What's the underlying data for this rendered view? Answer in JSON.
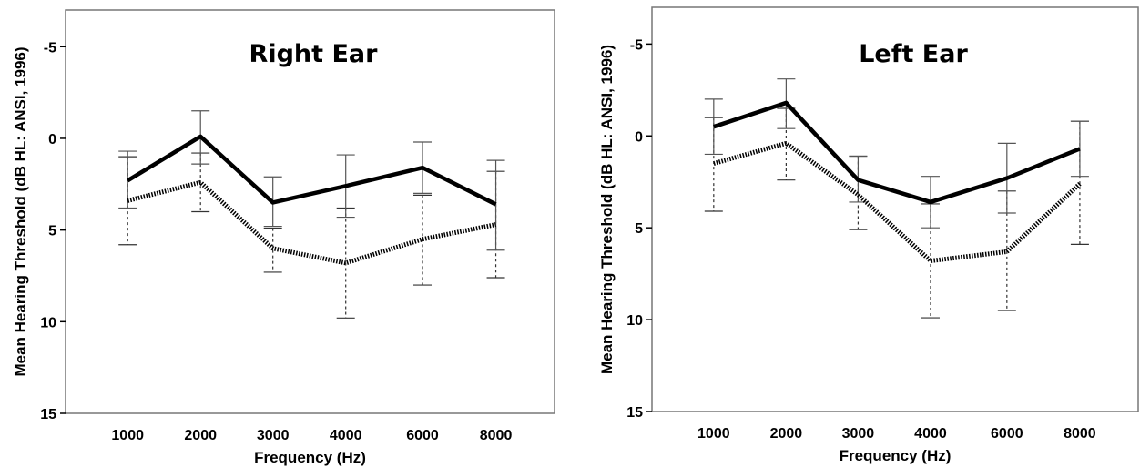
{
  "chart_data": [
    {
      "type": "line",
      "title": "Right Ear",
      "xlabel": "Frequency (Hz)",
      "ylabel": "Mean Hearing Threshold (dB HL: ANSI, 1996)",
      "categories": [
        "1000",
        "2000",
        "3000",
        "4000",
        "6000",
        "8000"
      ],
      "ylim": [
        15,
        -7
      ],
      "yticks": [
        -5,
        0,
        5,
        10,
        15
      ],
      "ytick_labels": [
        "-5",
        "0",
        "5",
        "10",
        "15"
      ],
      "series": [
        {
          "style": "solid",
          "color": "#000000",
          "values": [
            2.3,
            -0.1,
            3.5,
            2.6,
            1.6,
            3.6
          ],
          "err_low": [
            0.7,
            -1.5,
            2.1,
            0.9,
            0.2,
            1.2
          ],
          "err_high": [
            3.8,
            1.4,
            4.8,
            4.3,
            3.0,
            6.1
          ]
        },
        {
          "style": "dotted",
          "color": "#000000",
          "values": [
            3.4,
            2.4,
            6.0,
            6.8,
            5.5,
            4.7
          ],
          "err_low": [
            1.0,
            0.8,
            4.9,
            3.8,
            3.1,
            1.8
          ],
          "err_high": [
            5.8,
            4.0,
            7.3,
            9.8,
            8.0,
            7.6
          ]
        }
      ]
    },
    {
      "type": "line",
      "title": "Left Ear",
      "xlabel": "Frequency (Hz)",
      "ylabel": "Mean Hearing Threshold (dB HL: ANSI, 1996)",
      "categories": [
        "1000",
        "2000",
        "3000",
        "4000",
        "6000",
        "8000"
      ],
      "ylim": [
        15,
        -7
      ],
      "yticks": [
        -5,
        0,
        5,
        10,
        15
      ],
      "ytick_labels": [
        "-5",
        "0",
        "5",
        "10",
        "15"
      ],
      "series": [
        {
          "style": "solid",
          "color": "#000000",
          "values": [
            -0.5,
            -1.8,
            2.4,
            3.6,
            2.3,
            0.7
          ],
          "err_low": [
            -2.0,
            -3.1,
            1.1,
            2.2,
            0.4,
            -0.8
          ],
          "err_high": [
            1.0,
            -0.4,
            3.6,
            5.0,
            4.2,
            2.2
          ]
        },
        {
          "style": "dotted",
          "color": "#000000",
          "values": [
            1.5,
            0.4,
            3.2,
            6.8,
            6.3,
            2.6
          ],
          "err_low": [
            -1.0,
            -1.5,
            1.1,
            3.7,
            3.0,
            -0.8
          ],
          "err_high": [
            4.1,
            2.4,
            5.1,
            9.9,
            9.5,
            5.9
          ]
        }
      ]
    }
  ]
}
